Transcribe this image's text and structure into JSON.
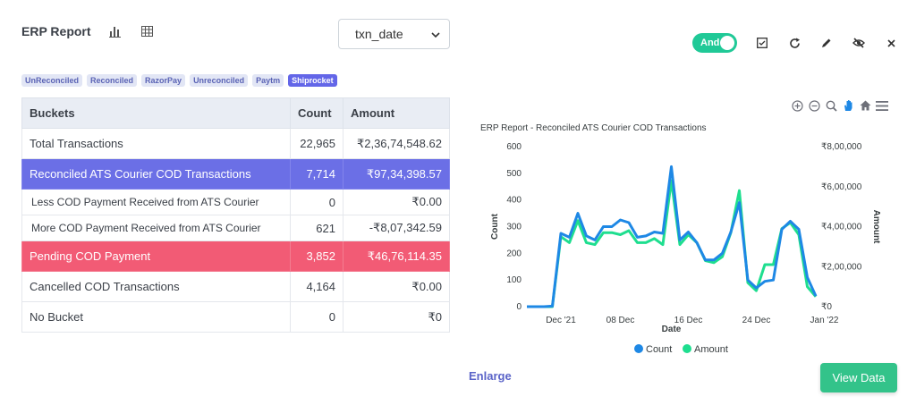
{
  "header": {
    "title": "ERP Report",
    "icons": [
      "bar-chart-icon",
      "table-grid-icon"
    ]
  },
  "date_select": {
    "value": "txn_date"
  },
  "tags": [
    {
      "label": "UnReconciled",
      "active": false
    },
    {
      "label": "Reconciled",
      "active": false
    },
    {
      "label": "RazorPay",
      "active": false
    },
    {
      "label": "Unreconciled",
      "active": false
    },
    {
      "label": "Paytm",
      "active": false
    },
    {
      "label": "Shiprocket",
      "active": true
    }
  ],
  "table": {
    "headers": [
      "Buckets",
      "Count",
      "Amount"
    ],
    "rows": [
      {
        "bucket": "Total Transactions",
        "count": "22,965",
        "amount": "₹2,36,74,548.62",
        "style": ""
      },
      {
        "bucket": "Reconciled ATS Courier COD Transactions",
        "count": "7,714",
        "amount": "₹97,34,398.57",
        "style": "blue"
      },
      {
        "bucket": "Less COD Payment Received from ATS Courier",
        "count": "0",
        "amount": "₹0.00",
        "style": "sub"
      },
      {
        "bucket": "More COD Payment Received from ATS Courier",
        "count": "621",
        "amount": "-₹8,07,342.59",
        "style": "sub"
      },
      {
        "bucket": "Pending COD Payment",
        "count": "3,852",
        "amount": "₹46,76,114.35",
        "style": "red"
      },
      {
        "bucket": "Cancelled COD Transactions",
        "count": "4,164",
        "amount": "₹0.00",
        "style": ""
      },
      {
        "bucket": "No Bucket",
        "count": "0",
        "amount": "₹0",
        "style": ""
      }
    ]
  },
  "toolbar": {
    "toggle_label": "And",
    "toggle_on": true,
    "icons": [
      "checkbox-icon",
      "refresh-icon",
      "pencil-icon",
      "eye-slash-icon",
      "close-icon"
    ]
  },
  "chart_tools": [
    "zoom-in-icon",
    "zoom-out-icon",
    "zoom-select-icon",
    "pan-hand-icon",
    "home-icon",
    "menu-icon"
  ],
  "chart_data": {
    "type": "line",
    "title": "ERP Report - Reconciled ATS Courier COD Transactions",
    "xlabel": "Date",
    "ylabel": "Count",
    "y2label": "Amount",
    "x_ticks": [
      "Dec '21",
      "08 Dec",
      "16 Dec",
      "24 Dec",
      "Jan '22"
    ],
    "y_ticks": [
      "0",
      "100",
      "200",
      "300",
      "400",
      "500",
      "600"
    ],
    "y2_ticks": [
      "₹0",
      "₹2,00,000",
      "₹4,00,000",
      "₹6,00,000",
      "₹8,00,000"
    ],
    "ylim": [
      0,
      600
    ],
    "y2lim": [
      0,
      800000
    ],
    "x": [
      "2021-11-27",
      "2021-11-28",
      "2021-11-29",
      "2021-11-30",
      "2021-12-01",
      "2021-12-02",
      "2021-12-03",
      "2021-12-04",
      "2021-12-05",
      "2021-12-06",
      "2021-12-07",
      "2021-12-08",
      "2021-12-09",
      "2021-12-10",
      "2021-12-11",
      "2021-12-12",
      "2021-12-13",
      "2021-12-14",
      "2021-12-15",
      "2021-12-16",
      "2021-12-17",
      "2021-12-18",
      "2021-12-19",
      "2021-12-20",
      "2021-12-21",
      "2021-12-22",
      "2021-12-23",
      "2021-12-24",
      "2021-12-25",
      "2021-12-26",
      "2021-12-27",
      "2021-12-28",
      "2021-12-29",
      "2021-12-30",
      "2021-12-31"
    ],
    "legend_position": "bottom",
    "series": [
      {
        "name": "Count",
        "color": "#1e88e5",
        "axis": "left",
        "values": [
          0,
          0,
          0,
          2,
          275,
          260,
          350,
          265,
          250,
          300,
          300,
          325,
          315,
          260,
          265,
          280,
          275,
          525,
          250,
          280,
          240,
          175,
          175,
          200,
          280,
          390,
          100,
          70,
          95,
          100,
          290,
          320,
          290,
          110,
          40
        ]
      },
      {
        "name": "Amount",
        "color": "#1ede8f",
        "axis": "right",
        "values": [
          0,
          0,
          0,
          0,
          350000,
          320000,
          430000,
          320000,
          310000,
          370000,
          370000,
          360000,
          380000,
          320000,
          320000,
          340000,
          310000,
          630000,
          310000,
          360000,
          320000,
          230000,
          220000,
          250000,
          370000,
          580000,
          120000,
          80000,
          210000,
          210000,
          390000,
          420000,
          360000,
          100000,
          50000
        ]
      }
    ]
  },
  "footer": {
    "enlarge_label": "Enlarge",
    "view_data_label": "View Data"
  }
}
